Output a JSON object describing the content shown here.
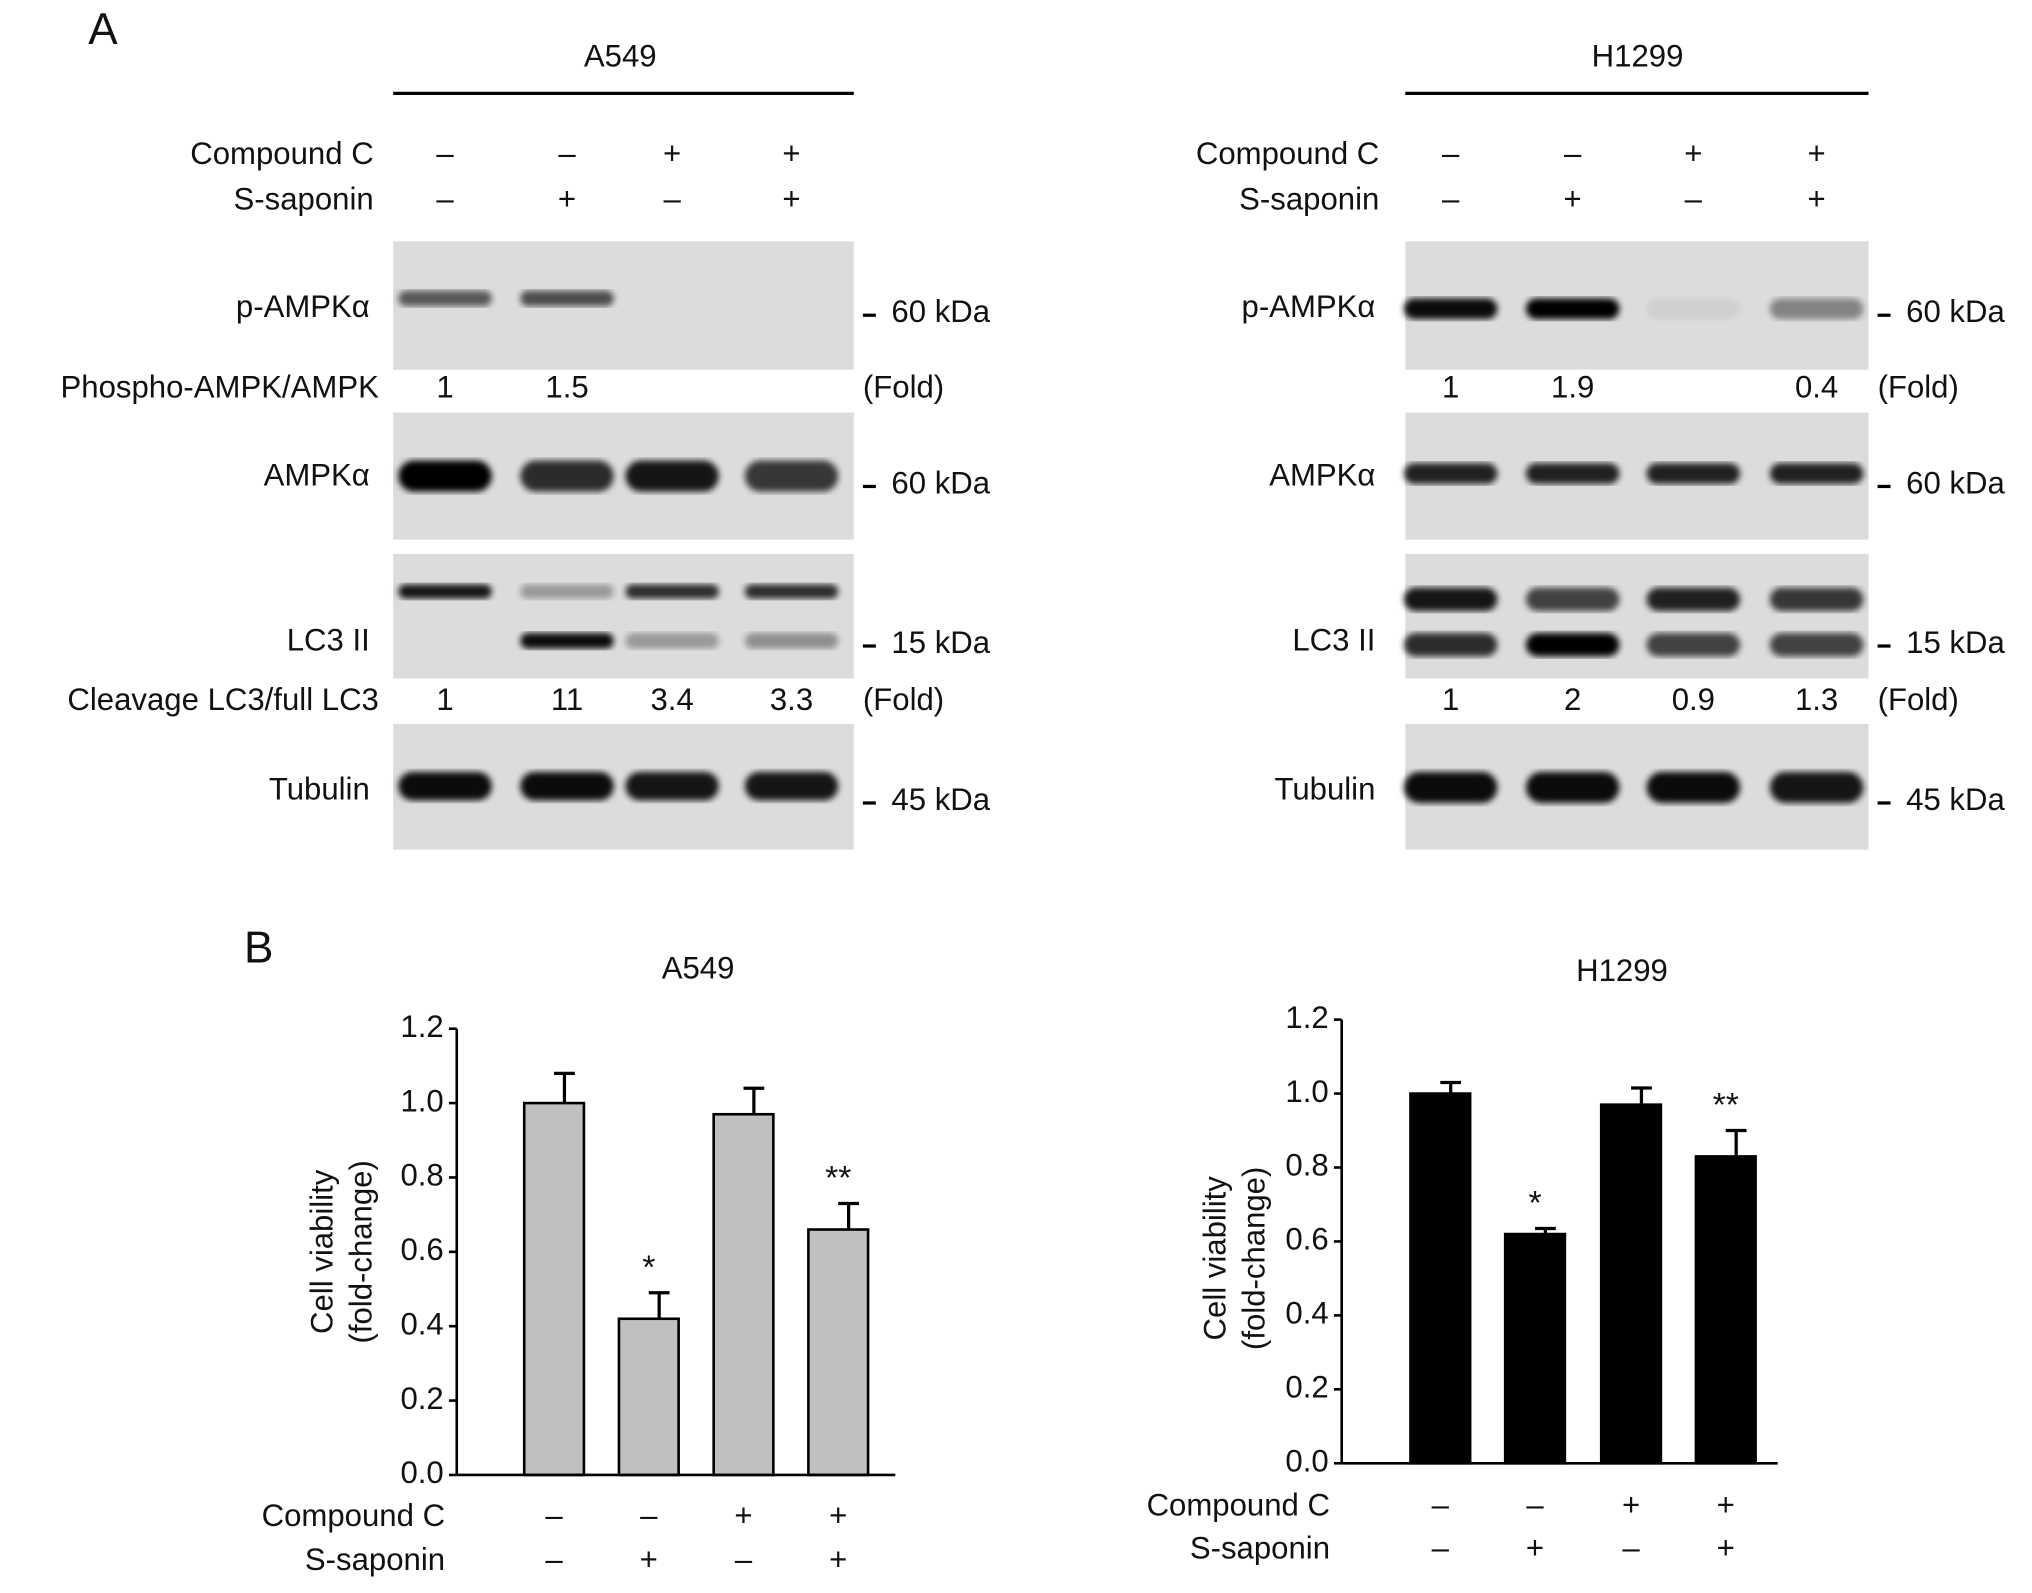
{
  "panel_a": {
    "label": "A",
    "cell_lines": [
      {
        "title": "A549",
        "treatments": [
          {
            "name": "Compound C",
            "signs": [
              "–",
              "–",
              "+",
              "+"
            ]
          },
          {
            "name": "S-saponin",
            "signs": [
              "–",
              "+",
              "–",
              "+"
            ]
          }
        ],
        "blots": [
          {
            "label": "p-AMPKα",
            "marker": "60 kDa"
          },
          {
            "label": "AMPKα",
            "marker": "60 kDa"
          },
          {
            "label": "LC3 II",
            "marker": "15 kDa"
          },
          {
            "label": "Tubulin",
            "marker": "45 kDa"
          }
        ],
        "folds": [
          {
            "label": "Phospho-AMPK/AMPK",
            "values": [
              1,
              1.5,
              null,
              null
            ],
            "unit": "(Fold)"
          },
          {
            "label": "Cleavage LC3/full LC3",
            "values": [
              1,
              11,
              3.4,
              3.3
            ],
            "unit": "(Fold)"
          }
        ]
      },
      {
        "title": "H1299",
        "treatments": [
          {
            "name": "Compound C",
            "signs": [
              "–",
              "–",
              "+",
              "+"
            ]
          },
          {
            "name": "S-saponin",
            "signs": [
              "–",
              "+",
              "–",
              "+"
            ]
          }
        ],
        "blots": [
          {
            "label": "p-AMPKα",
            "marker": "60 kDa"
          },
          {
            "label": "AMPKα",
            "marker": "60 kDa"
          },
          {
            "label": "LC3 II",
            "marker": "15 kDa"
          },
          {
            "label": "Tubulin",
            "marker": "45 kDa"
          }
        ],
        "folds": [
          {
            "values": [
              1,
              1.9,
              null,
              0.4
            ],
            "unit": "(Fold)"
          },
          {
            "values": [
              1,
              2,
              0.9,
              1.3
            ],
            "unit": "(Fold)"
          }
        ]
      }
    ]
  },
  "panel_b": {
    "label": "B"
  },
  "chart_data": [
    {
      "type": "bar",
      "title": "A549",
      "y_label": [
        "Cell viability",
        "(fold-change)"
      ],
      "values": [
        1.0,
        0.42,
        0.97,
        0.66
      ],
      "errors": [
        0.08,
        0.07,
        0.07,
        0.07
      ],
      "annotations": [
        null,
        "*",
        null,
        "**"
      ],
      "color": "#c0c0c0",
      "treatments": [
        {
          "name": "Compound C",
          "signs": [
            "–",
            "–",
            "+",
            "+"
          ]
        },
        {
          "name": "S-saponin",
          "signs": [
            "–",
            "+",
            "–",
            "+"
          ]
        }
      ],
      "ylim": [
        0,
        1.2
      ],
      "yticks": [
        {
          "value": 0,
          "label": "0.0"
        },
        0.2,
        0.4,
        0.6,
        0.8,
        {
          "value": 1,
          "label": "1.0"
        },
        1.2
      ]
    },
    {
      "type": "bar",
      "title": "H1299",
      "y_label": [
        "Cell viability",
        "(fold-change)"
      ],
      "values": [
        1.0,
        0.62,
        0.97,
        0.83
      ],
      "errors": [
        0.03,
        0.015,
        0.045,
        0.07
      ],
      "annotations": [
        null,
        "*",
        null,
        "**"
      ],
      "color": "#000000",
      "treatments": [
        {
          "name": "Compound C",
          "signs": [
            "–",
            "–",
            "+",
            "+"
          ]
        },
        {
          "name": "S-saponin",
          "signs": [
            "–",
            "+",
            "–",
            "+"
          ]
        }
      ],
      "ylim": [
        0,
        1.2
      ],
      "yticks": [
        {
          "value": 0,
          "label": "0.0"
        },
        0.2,
        0.4,
        0.6,
        0.8,
        {
          "value": 1,
          "label": "1.0"
        },
        1.2
      ]
    }
  ]
}
